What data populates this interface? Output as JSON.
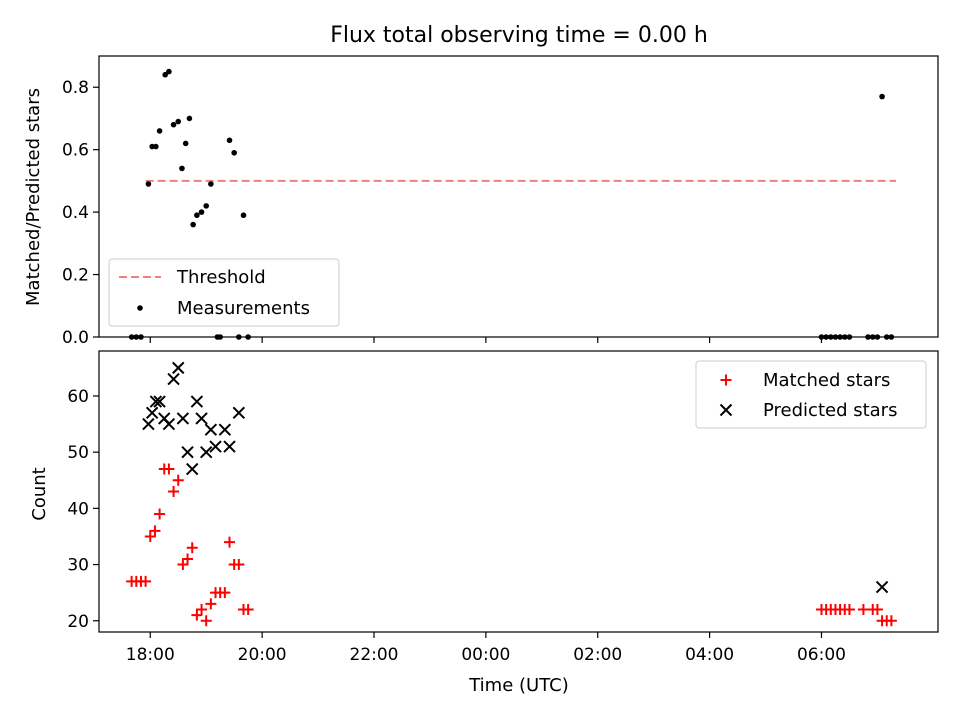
{
  "title": "Flux total observing time = 0.00 h",
  "chart_data": [
    {
      "type": "scatter",
      "ylabel": "Matched/Predicted stars",
      "xlabel": "",
      "xlim": [
        "17:05",
        "08:05"
      ],
      "ylim": [
        0,
        0.9
      ],
      "x_ticks": [
        "18:00",
        "20:00",
        "22:00",
        "00:00",
        "02:00",
        "04:00",
        "06:00"
      ],
      "x_tick_labels_shown": false,
      "y_ticks": [
        0.0,
        0.2,
        0.4,
        0.6,
        0.8
      ],
      "y_tick_labels": [
        "0.0",
        "0.2",
        "0.4",
        "0.6",
        "0.8"
      ],
      "legend": {
        "position": "lower-left",
        "entries": [
          "Threshold",
          "Measurements"
        ]
      },
      "threshold": {
        "name": "Threshold",
        "y": 0.5,
        "x_range": [
          "17:55",
          "07:20"
        ],
        "color": "#f08080",
        "style": "dashed"
      },
      "series": [
        {
          "name": "Measurements",
          "color": "#000000",
          "marker": "dot",
          "points": [
            [
              "17:40",
              0.0
            ],
            [
              "17:45",
              0.0
            ],
            [
              "17:50",
              0.0
            ],
            [
              "17:58",
              0.49
            ],
            [
              "18:02",
              0.61
            ],
            [
              "18:06",
              0.61
            ],
            [
              "18:10",
              0.66
            ],
            [
              "18:16",
              0.84
            ],
            [
              "18:20",
              0.85
            ],
            [
              "18:25",
              0.68
            ],
            [
              "18:30",
              0.69
            ],
            [
              "18:34",
              0.54
            ],
            [
              "18:38",
              0.62
            ],
            [
              "18:42",
              0.7
            ],
            [
              "18:46",
              0.36
            ],
            [
              "18:50",
              0.39
            ],
            [
              "18:55",
              0.4
            ],
            [
              "19:00",
              0.42
            ],
            [
              "19:05",
              0.49
            ],
            [
              "19:12",
              0.0
            ],
            [
              "19:15",
              0.0
            ],
            [
              "19:25",
              0.63
            ],
            [
              "19:30",
              0.59
            ],
            [
              "19:35",
              0.0
            ],
            [
              "19:40",
              0.39
            ],
            [
              "19:45",
              0.0
            ],
            [
              "06:00",
              0.0
            ],
            [
              "06:05",
              0.0
            ],
            [
              "06:10",
              0.0
            ],
            [
              "06:15",
              0.0
            ],
            [
              "06:20",
              0.0
            ],
            [
              "06:25",
              0.0
            ],
            [
              "06:30",
              0.0
            ],
            [
              "06:50",
              0.0
            ],
            [
              "06:55",
              0.0
            ],
            [
              "07:00",
              0.0
            ],
            [
              "07:05",
              0.77
            ],
            [
              "07:10",
              0.0
            ],
            [
              "07:15",
              0.0
            ]
          ]
        }
      ]
    },
    {
      "type": "scatter",
      "ylabel": "Count",
      "xlabel": "Time (UTC)",
      "xlim": [
        "17:05",
        "08:05"
      ],
      "ylim": [
        18,
        68
      ],
      "x_ticks": [
        "18:00",
        "20:00",
        "22:00",
        "00:00",
        "02:00",
        "04:00",
        "06:00"
      ],
      "x_tick_labels": [
        "18:00",
        "20:00",
        "22:00",
        "00:00",
        "02:00",
        "04:00",
        "06:00"
      ],
      "y_ticks": [
        20,
        30,
        40,
        50,
        60
      ],
      "y_tick_labels": [
        "20",
        "30",
        "40",
        "50",
        "60"
      ],
      "legend": {
        "position": "top-right",
        "entries": [
          "Matched stars",
          "Predicted stars"
        ]
      },
      "series": [
        {
          "name": "Matched stars",
          "color": "#ff0000",
          "marker": "plus",
          "points": [
            [
              "17:40",
              27
            ],
            [
              "17:45",
              27
            ],
            [
              "17:50",
              27
            ],
            [
              "17:55",
              27
            ],
            [
              "18:00",
              35
            ],
            [
              "18:05",
              36
            ],
            [
              "18:10",
              39
            ],
            [
              "18:15",
              47
            ],
            [
              "18:20",
              47
            ],
            [
              "18:25",
              43
            ],
            [
              "18:30",
              45
            ],
            [
              "18:35",
              30
            ],
            [
              "18:40",
              31
            ],
            [
              "18:45",
              33
            ],
            [
              "18:50",
              21
            ],
            [
              "18:55",
              22
            ],
            [
              "19:00",
              20
            ],
            [
              "19:05",
              23
            ],
            [
              "19:10",
              25
            ],
            [
              "19:15",
              25
            ],
            [
              "19:20",
              25
            ],
            [
              "19:25",
              34
            ],
            [
              "19:30",
              30
            ],
            [
              "19:35",
              30
            ],
            [
              "19:40",
              22
            ],
            [
              "19:45",
              22
            ],
            [
              "06:00",
              22
            ],
            [
              "06:05",
              22
            ],
            [
              "06:10",
              22
            ],
            [
              "06:15",
              22
            ],
            [
              "06:20",
              22
            ],
            [
              "06:25",
              22
            ],
            [
              "06:30",
              22
            ],
            [
              "06:45",
              22
            ],
            [
              "06:55",
              22
            ],
            [
              "07:00",
              22
            ],
            [
              "07:05",
              20
            ],
            [
              "07:10",
              20
            ],
            [
              "07:15",
              20
            ]
          ]
        },
        {
          "name": "Predicted stars",
          "color": "#000000",
          "marker": "x",
          "points": [
            [
              "17:58",
              55
            ],
            [
              "18:02",
              57
            ],
            [
              "18:06",
              59
            ],
            [
              "18:10",
              59
            ],
            [
              "18:15",
              56
            ],
            [
              "18:20",
              55
            ],
            [
              "18:25",
              63
            ],
            [
              "18:30",
              65
            ],
            [
              "18:35",
              56
            ],
            [
              "18:40",
              50
            ],
            [
              "18:45",
              47
            ],
            [
              "18:50",
              59
            ],
            [
              "18:55",
              56
            ],
            [
              "19:00",
              50
            ],
            [
              "19:05",
              54
            ],
            [
              "19:10",
              51
            ],
            [
              "19:20",
              54
            ],
            [
              "19:25",
              51
            ],
            [
              "19:35",
              57
            ],
            [
              "07:05",
              26
            ]
          ]
        }
      ]
    }
  ]
}
